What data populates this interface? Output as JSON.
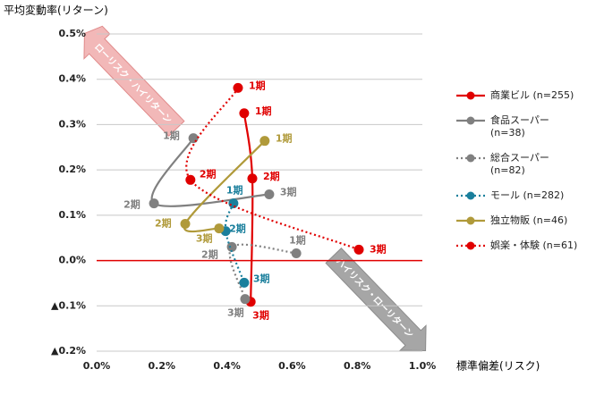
{
  "chart_data": {
    "type": "line",
    "y_axis_label": "平均変動率(リターン)",
    "x_axis_label": "標準偏差(リスク)",
    "annotations": [
      "ローリスク・ハイリターン",
      "ハイリスク・ローリターン"
    ],
    "xlim": [
      0,
      1
    ],
    "ylim": [
      -0.2,
      0.5
    ],
    "xticks": [
      {
        "value": 0,
        "label": "0.0%"
      },
      {
        "value": 0.2,
        "label": "0.2%"
      },
      {
        "value": 0.4,
        "label": "0.4%"
      },
      {
        "value": 0.6,
        "label": "0.6%"
      },
      {
        "value": 0.8,
        "label": "0.8%"
      },
      {
        "value": 1,
        "label": "1.0%"
      }
    ],
    "yticks": [
      {
        "value": 0.5,
        "label": "0.5%"
      },
      {
        "value": 0.4,
        "label": "0.4%"
      },
      {
        "value": 0.3,
        "label": "0.3%"
      },
      {
        "value": 0.2,
        "label": "0.2%"
      },
      {
        "value": 0.1,
        "label": "0.1%"
      },
      {
        "value": 0,
        "label": "0.0%"
      },
      {
        "value": -0.1,
        "label": "▲0.1%"
      },
      {
        "value": -0.2,
        "label": "▲0.2%"
      }
    ],
    "grid": true,
    "series": [
      {
        "name": "商業ビル (n=255)",
        "color": "#e00000",
        "dashed": false,
        "x": [
          0.453,
          0.478,
          0.473
        ],
        "values": [
          0.325,
          0.181,
          -0.091
        ],
        "point_labels": [
          "1期",
          "2期",
          "3期"
        ]
      },
      {
        "name": "食品スーパー (n=38)",
        "color": "#808080",
        "dashed": false,
        "x": [
          0.297,
          0.176,
          0.53
        ],
        "values": [
          0.27,
          0.126,
          0.146
        ],
        "point_labels": [
          "1期",
          "2期",
          "3期"
        ]
      },
      {
        "name": "総合スーパー (n=82)",
        "color": "#808080",
        "dashed": true,
        "x": [
          0.613,
          0.415,
          0.456
        ],
        "values": [
          0.016,
          0.03,
          -0.085
        ],
        "point_labels": [
          "1期",
          "2期",
          "3期"
        ]
      },
      {
        "name": "モール (n=282)",
        "color": "#1a7f9c",
        "dashed": true,
        "x": [
          0.42,
          0.396,
          0.453
        ],
        "values": [
          0.126,
          0.065,
          -0.049
        ],
        "point_labels": [
          "1期",
          "2期",
          "3期"
        ]
      },
      {
        "name": "独立物販 (n=46)",
        "color": "#b09a3a",
        "dashed": false,
        "x": [
          0.516,
          0.272,
          0.376
        ],
        "values": [
          0.264,
          0.081,
          0.071
        ],
        "point_labels": [
          "1期",
          "2期",
          "3期"
        ]
      },
      {
        "name": "娯楽・体験 (n=61)",
        "color": "#e00000",
        "dashed": true,
        "x": [
          0.434,
          0.288,
          0.805
        ],
        "values": [
          0.381,
          0.178,
          0.024
        ],
        "point_labels": [
          "1期",
          "2期",
          "3期"
        ]
      }
    ]
  }
}
